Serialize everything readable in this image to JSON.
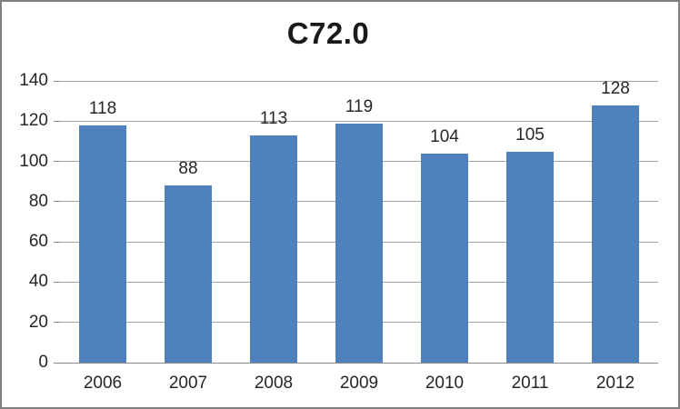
{
  "frame": {
    "border_color": "#7f7f7f",
    "background": "#ffffff"
  },
  "chart_data": {
    "type": "bar",
    "title": "C72.0",
    "categories": [
      "2006",
      "2007",
      "2008",
      "2009",
      "2010",
      "2011",
      "2012"
    ],
    "values": [
      118,
      88,
      113,
      119,
      104,
      105,
      128
    ],
    "xlabel": "",
    "ylabel": "",
    "ylim": [
      0,
      140
    ],
    "ytick_interval": 20,
    "yticks": [
      0,
      20,
      40,
      60,
      80,
      100,
      120,
      140
    ],
    "grid": "horizontal",
    "legend": "none",
    "data_labels": true,
    "colors": {
      "bar": "#4f81bd",
      "gridline": "#a3a3a3",
      "axis": "#898989",
      "text": "#262626"
    }
  }
}
